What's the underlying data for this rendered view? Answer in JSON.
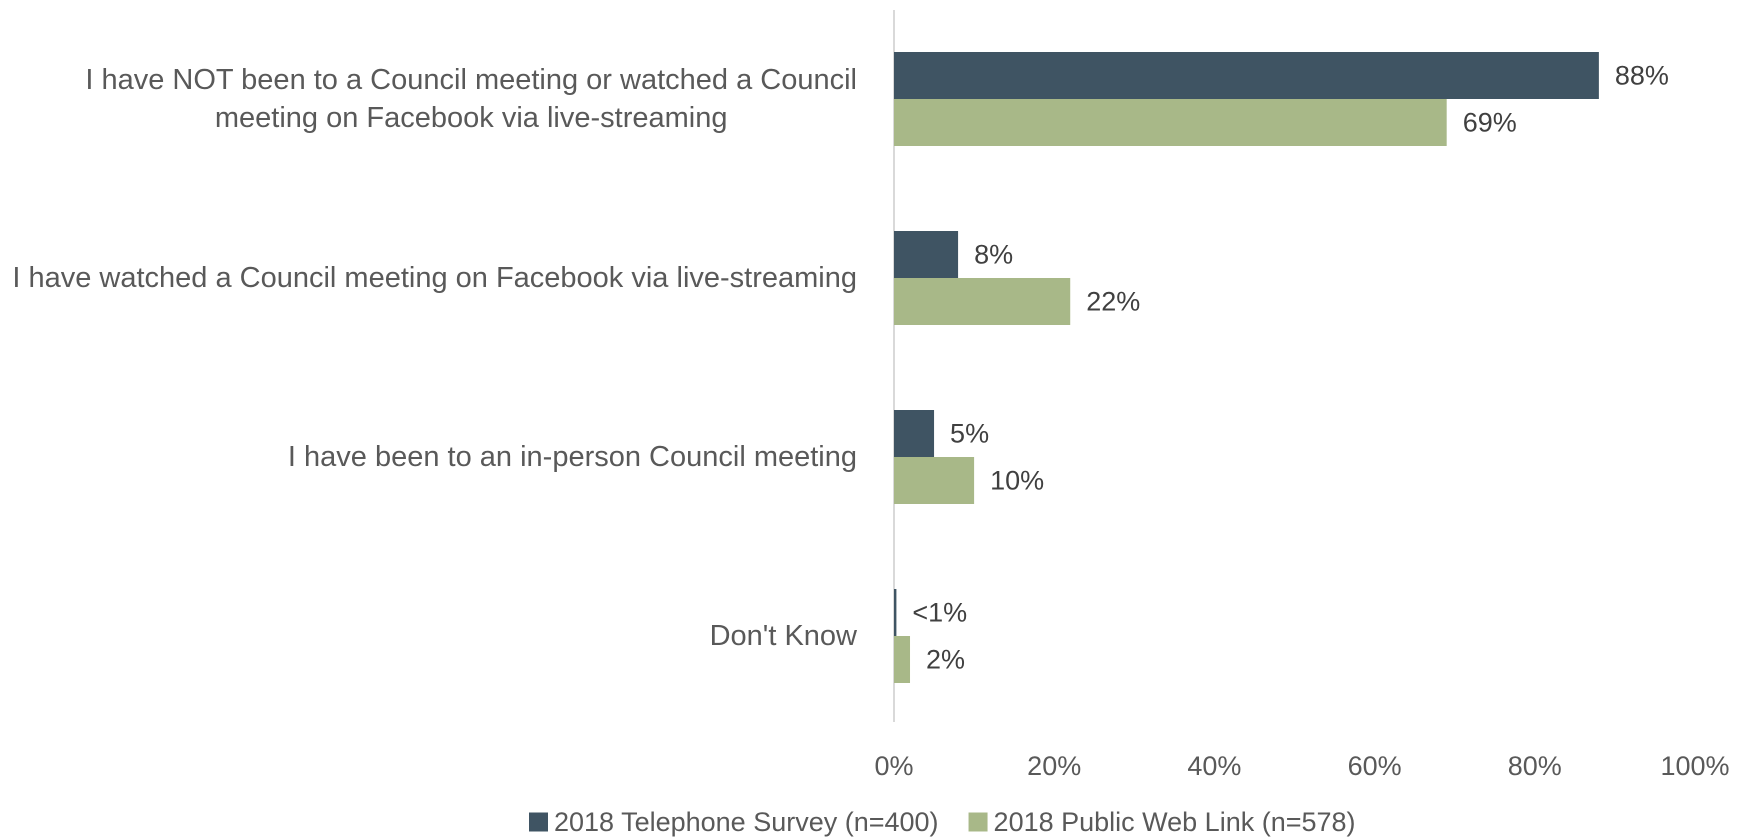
{
  "chart_data": {
    "type": "bar",
    "orientation": "horizontal",
    "categories": [
      [
        "I have NOT been to a Council meeting or watched a Council",
        "meeting on Facebook via live-streaming"
      ],
      [
        "I have watched a Council meeting on Facebook via live-streaming"
      ],
      [
        "I have been to an in-person Council meeting"
      ],
      [
        "Don't Know"
      ]
    ],
    "series": [
      {
        "name": "2018 Telephone Survey (n=400)",
        "color": "#3f5463",
        "values": [
          88,
          8,
          5,
          0.3
        ],
        "labels": [
          "88%",
          "8%",
          "5%",
          "<1%"
        ]
      },
      {
        "name": "2018 Public Web Link (n=578)",
        "color": "#a8b888",
        "values": [
          69,
          22,
          10,
          2
        ],
        "labels": [
          "69%",
          "22%",
          "10%",
          "2%"
        ]
      }
    ],
    "xlim": [
      0,
      100
    ],
    "xticks": [
      "0%",
      "20%",
      "40%",
      "60%",
      "80%",
      "100%"
    ],
    "grid": false,
    "legend": "bottom",
    "title": "",
    "xlabel": "",
    "ylabel": ""
  }
}
